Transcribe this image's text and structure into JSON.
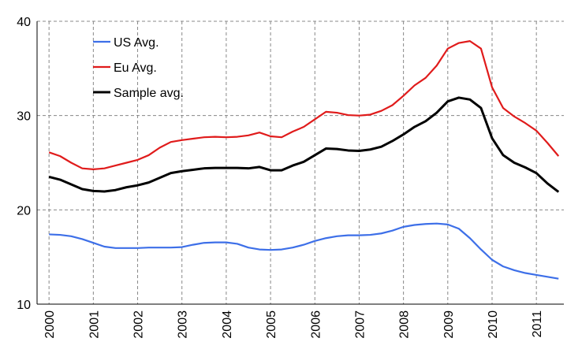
{
  "chart_data": {
    "type": "line",
    "x": [
      2000,
      2000.25,
      2000.5,
      2000.75,
      2001,
      2001.25,
      2001.5,
      2001.75,
      2002,
      2002.25,
      2002.5,
      2002.75,
      2003,
      2003.25,
      2003.5,
      2003.75,
      2004,
      2004.25,
      2004.5,
      2004.75,
      2005,
      2005.25,
      2005.5,
      2005.75,
      2006,
      2006.25,
      2006.5,
      2006.75,
      2007,
      2007.25,
      2007.5,
      2007.75,
      2008,
      2008.25,
      2008.5,
      2008.75,
      2009,
      2009.25,
      2009.5,
      2009.75,
      2010,
      2010.25,
      2010.5,
      2010.75,
      2011,
      2011.25,
      2011.5
    ],
    "series": [
      {
        "name": "US Avg.",
        "color": "#3d6fe8",
        "values": [
          17.4,
          17.35,
          17.2,
          16.9,
          16.5,
          16.1,
          15.95,
          15.95,
          15.95,
          16.0,
          16.0,
          16.0,
          16.05,
          16.3,
          16.5,
          16.55,
          16.55,
          16.4,
          16.0,
          15.8,
          15.75,
          15.8,
          16.0,
          16.3,
          16.7,
          17.0,
          17.2,
          17.3,
          17.3,
          17.35,
          17.5,
          17.8,
          18.2,
          18.4,
          18.5,
          18.55,
          18.45,
          18.0,
          17.0,
          15.8,
          14.7,
          14.0,
          13.6,
          13.3,
          13.1,
          12.9,
          12.7
        ]
      },
      {
        "name": "Eu Avg.",
        "color": "#e01b1b",
        "values": [
          26.1,
          25.7,
          25.0,
          24.4,
          24.3,
          24.4,
          24.7,
          25.0,
          25.3,
          25.8,
          26.6,
          27.2,
          27.4,
          27.55,
          27.7,
          27.75,
          27.7,
          27.75,
          27.9,
          28.2,
          27.8,
          27.7,
          28.3,
          28.8,
          29.6,
          30.4,
          30.3,
          30.05,
          30.0,
          30.1,
          30.5,
          31.1,
          32.1,
          33.2,
          34.0,
          35.3,
          37.1,
          37.7,
          37.9,
          37.1,
          33.0,
          30.8,
          29.9,
          29.2,
          28.4,
          27.1,
          25.7
        ]
      },
      {
        "name": "Sample avg.",
        "color": "#000000",
        "values": [
          23.5,
          23.2,
          22.7,
          22.2,
          22.0,
          21.95,
          22.1,
          22.4,
          22.6,
          22.9,
          23.4,
          23.9,
          24.1,
          24.25,
          24.4,
          24.45,
          24.45,
          24.45,
          24.4,
          24.55,
          24.2,
          24.2,
          24.7,
          25.1,
          25.8,
          26.5,
          26.45,
          26.3,
          26.25,
          26.4,
          26.7,
          27.3,
          28.0,
          28.8,
          29.4,
          30.3,
          31.5,
          31.9,
          31.7,
          30.8,
          27.6,
          25.8,
          25.0,
          24.5,
          23.9,
          22.8,
          21.9
        ]
      }
    ],
    "xlim": [
      1999.73,
      2011.62
    ],
    "xticks": [
      2000,
      2001,
      2002,
      2003,
      2004,
      2005,
      2006,
      2007,
      2008,
      2009,
      2010,
      2011
    ],
    "ylim": [
      10,
      40
    ],
    "yticks": [
      10,
      20,
      30,
      40
    ],
    "grid": true,
    "legend": "upper-left"
  }
}
